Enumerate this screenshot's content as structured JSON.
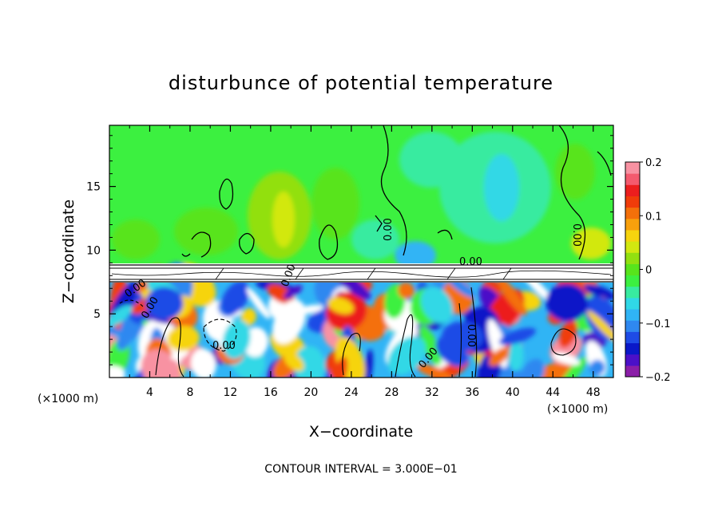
{
  "chart_data": {
    "type": "heatmap",
    "title": "disturbunce of potential temperature",
    "xlabel": "X−coordinate",
    "ylabel": "Z−coordinate",
    "x_unit": "(×1000 m)",
    "z_unit": "(×1000 m)",
    "x_ticks": [
      "4",
      "8",
      "12",
      "16",
      "20",
      "24",
      "28",
      "32",
      "36",
      "40",
      "44",
      "48"
    ],
    "z_ticks": [
      "5",
      "10",
      "15"
    ],
    "xlim": [
      0,
      50
    ],
    "zlim": [
      0,
      19.8
    ],
    "footer": "CONTOUR INTERVAL = 3.000E−01",
    "contour_labels": [
      "0.00",
      "0.00",
      "0.00",
      "0.00",
      "0.00",
      "0.00",
      "0.00",
      "0.00",
      "0.00"
    ],
    "colorbar": {
      "ticks": [
        "0.2",
        "0.1",
        "0",
        "−0.1",
        "−0.2"
      ],
      "range": [
        -0.2,
        0.2
      ],
      "colors": [
        "#8b1ea8",
        "#4b10c8",
        "#0a18c8",
        "#1e4be6",
        "#2f88f0",
        "#30b4f5",
        "#30d8e6",
        "#38eba0",
        "#3cf040",
        "#58e41c",
        "#92e010",
        "#d2e810",
        "#f6d40e",
        "#f8a00c",
        "#f4700a",
        "#f03c0a",
        "#ec1e1e",
        "#f45a6e",
        "#f892a2"
      ]
    },
    "regions": {
      "upper": "near zero (green) with cyan negative and yellow positive patches",
      "boundary_layer": "strong turbulent mixture of positive (red/white) and negative (blue/purple) anomalies below ~8 km"
    }
  }
}
